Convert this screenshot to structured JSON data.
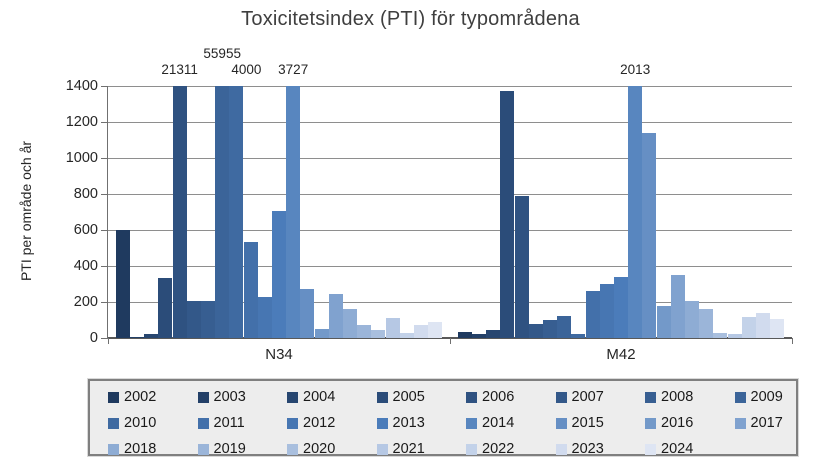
{
  "title": "Toxicitetsindex (PTI) för typområdena",
  "chart_data": {
    "type": "bar",
    "title": "Toxicitetsindex (PTI) för typområdena",
    "xlabel": "",
    "ylabel": "PTI per område och år",
    "ylim": [
      0,
      1400
    ],
    "yticks": [
      0,
      200,
      400,
      600,
      800,
      1000,
      1200,
      1400
    ],
    "grid": true,
    "legend_position": "bottom",
    "legend_rows": 3,
    "legend_cols": 8,
    "categories": [
      "N34",
      "M42"
    ],
    "note": "values above 1400 are drawn clipped at the 1400 line with a numeric data label",
    "series": [
      {
        "name": "2002",
        "color": "#1F3A5F",
        "values": [
          600,
          35
        ]
      },
      {
        "name": "2003",
        "color": "#234068",
        "values": [
          5,
          20
        ]
      },
      {
        "name": "2004",
        "color": "#274670",
        "values": [
          20,
          45
        ]
      },
      {
        "name": "2005",
        "color": "#2B4C79",
        "values": [
          335,
          1370
        ]
      },
      {
        "name": "2006",
        "color": "#2F5281",
        "values": [
          21311,
          790
        ]
      },
      {
        "name": "2007",
        "color": "#335889",
        "values": [
          205,
          80
        ]
      },
      {
        "name": "2008",
        "color": "#375E91",
        "values": [
          205,
          100
        ]
      },
      {
        "name": "2009",
        "color": "#3B6499",
        "values": [
          55955,
          120
        ]
      },
      {
        "name": "2010",
        "color": "#3F6AA1",
        "values": [
          4000,
          25
        ]
      },
      {
        "name": "2011",
        "color": "#4370AA",
        "values": [
          535,
          260
        ]
      },
      {
        "name": "2012",
        "color": "#4776B2",
        "values": [
          230,
          300
        ]
      },
      {
        "name": "2013",
        "color": "#4B7CBA",
        "values": [
          705,
          340
        ]
      },
      {
        "name": "2014",
        "color": "#5886BF",
        "values": [
          3727,
          2013
        ]
      },
      {
        "name": "2015",
        "color": "#668FC4",
        "values": [
          270,
          1140
        ]
      },
      {
        "name": "2016",
        "color": "#7399C9",
        "values": [
          50,
          180
        ]
      },
      {
        "name": "2017",
        "color": "#80A2CF",
        "values": [
          245,
          350
        ]
      },
      {
        "name": "2018",
        "color": "#8EACD4",
        "values": [
          160,
          205
        ]
      },
      {
        "name": "2019",
        "color": "#9BB5D9",
        "values": [
          75,
          160
        ]
      },
      {
        "name": "2020",
        "color": "#A9BFDE",
        "values": [
          45,
          30
        ]
      },
      {
        "name": "2021",
        "color": "#B6C8E4",
        "values": [
          112,
          20
        ]
      },
      {
        "name": "2022",
        "color": "#C3D2E9",
        "values": [
          30,
          115
        ]
      },
      {
        "name": "2023",
        "color": "#D1DBEE",
        "values": [
          70,
          140
        ]
      },
      {
        "name": "2024",
        "color": "#DEE5F3",
        "values": [
          90,
          105
        ]
      }
    ],
    "annotations": [
      {
        "category": "N34",
        "series": "2006",
        "label": "21311",
        "raised": false,
        "dx": 0
      },
      {
        "category": "N34",
        "series": "2009",
        "label": "55955",
        "raised": true,
        "dx": 0
      },
      {
        "category": "N34",
        "series": "2010",
        "label": "4000",
        "raised": false,
        "dx": 10
      },
      {
        "category": "N34",
        "series": "2014",
        "label": "3727",
        "raised": false,
        "dx": 0
      },
      {
        "category": "M42",
        "series": "2014",
        "label": "2013",
        "raised": false,
        "dx": 0
      }
    ]
  }
}
